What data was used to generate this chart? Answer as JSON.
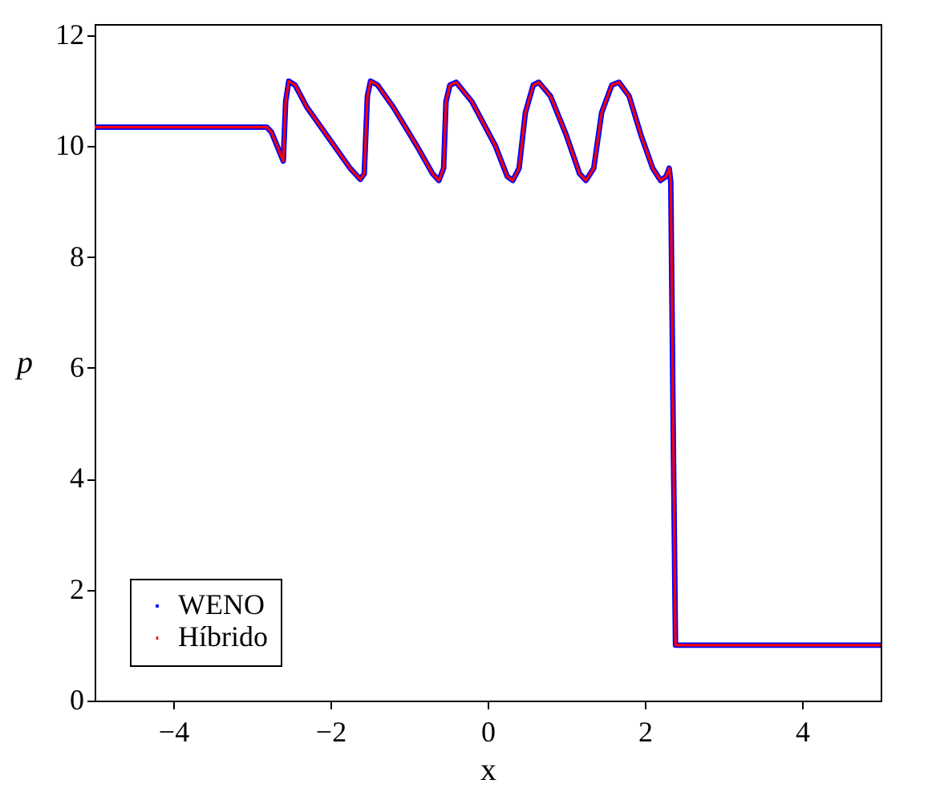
{
  "chart_data": {
    "type": "line",
    "xlabel": "x",
    "ylabel": "p",
    "xlim": [
      -5,
      5
    ],
    "ylim": [
      0,
      12.2
    ],
    "xticks": [
      {
        "value": -4,
        "label": "−4"
      },
      {
        "value": -2,
        "label": "−2"
      },
      0,
      2,
      4
    ],
    "yticks": [
      0,
      2,
      4,
      6,
      8,
      10,
      12
    ],
    "grid": false,
    "legend": "bottom left",
    "line_style": "solid",
    "marker": "none",
    "x": [
      -5,
      -2.81,
      -2.75,
      -2.6,
      -2.57,
      -2.53,
      -2.45,
      -2.3,
      -2.0,
      -1.75,
      -1.62,
      -1.57,
      -1.53,
      -1.49,
      -1.4,
      -1.2,
      -0.9,
      -0.7,
      -0.62,
      -0.56,
      -0.53,
      -0.48,
      -0.4,
      -0.2,
      0.1,
      0.25,
      0.32,
      0.4,
      0.48,
      0.58,
      0.65,
      0.8,
      1.0,
      1.17,
      1.25,
      1.35,
      1.45,
      1.58,
      1.67,
      1.8,
      1.95,
      2.1,
      2.2,
      2.27,
      2.31,
      2.33,
      2.36,
      2.39,
      5
    ],
    "series": [
      {
        "name": "WENO",
        "color": "#0000ff",
        "values": [
          10.34,
          10.34,
          10.25,
          9.73,
          10.8,
          11.17,
          11.1,
          10.7,
          10.1,
          9.6,
          9.4,
          9.5,
          10.9,
          11.17,
          11.1,
          10.7,
          10.0,
          9.5,
          9.38,
          9.6,
          10.8,
          11.1,
          11.15,
          10.8,
          10.0,
          9.45,
          9.38,
          9.6,
          10.6,
          11.1,
          11.15,
          10.9,
          10.2,
          9.5,
          9.38,
          9.6,
          10.6,
          11.1,
          11.15,
          10.9,
          10.2,
          9.6,
          9.38,
          9.45,
          9.6,
          9.35,
          5,
          1.0,
          1.0
        ]
      },
      {
        "name": "Híbrido",
        "color": "#ff0000",
        "values": [
          10.34,
          10.34,
          10.25,
          9.73,
          10.8,
          11.17,
          11.1,
          10.7,
          10.1,
          9.6,
          9.4,
          9.5,
          10.9,
          11.17,
          11.1,
          10.7,
          10.0,
          9.5,
          9.38,
          9.6,
          10.8,
          11.1,
          11.15,
          10.8,
          10.0,
          9.45,
          9.38,
          9.6,
          10.6,
          11.1,
          11.15,
          10.9,
          10.2,
          9.5,
          9.38,
          9.6,
          10.6,
          11.1,
          11.15,
          10.9,
          10.2,
          9.6,
          9.38,
          9.45,
          9.6,
          9.35,
          5,
          1.0,
          1.0
        ]
      }
    ]
  }
}
